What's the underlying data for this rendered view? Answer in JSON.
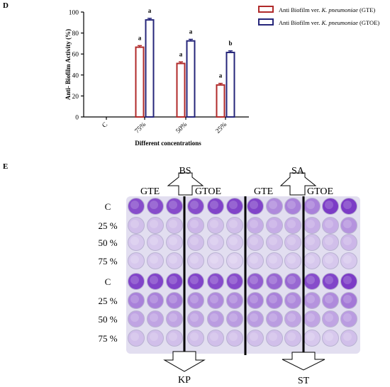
{
  "panel_d": {
    "letter": "D"
  },
  "panel_e": {
    "letter": "E"
  },
  "chart_data": {
    "type": "bar",
    "categories": [
      "C",
      "75%",
      "50%",
      "25%"
    ],
    "series": [
      {
        "name_prefix": "Anti Biofilm ver. ",
        "name_italic": "K. pneumoniae",
        "name_suffix": " (GTE)",
        "color": "#b02a2a",
        "values": [
          0,
          66.5,
          51,
          30.5
        ],
        "errors": [
          0,
          1.5,
          1.5,
          1.5
        ],
        "sig": [
          "",
          "a",
          "a",
          "a"
        ]
      },
      {
        "name_prefix": "Anti Biofilm ver. ",
        "name_italic": "K. pneumoniae",
        "name_suffix": " (GTOE)",
        "color": "#26267a",
        "values": [
          0,
          92.5,
          72.5,
          61.5
        ],
        "errors": [
          0,
          1.5,
          1.5,
          1.5
        ],
        "sig": [
          "",
          "a",
          "a",
          "b"
        ]
      }
    ],
    "xlabel": "Different concentrations",
    "ylabel": "Anti- Biofilm Activity (%)",
    "ylim": [
      0,
      100
    ],
    "yticks": [
      0,
      20,
      40,
      60,
      80,
      100
    ],
    "legend_position": "top-right",
    "grid": false
  },
  "plate": {
    "top_labels": {
      "left_gte": "GTE",
      "left_gtoe": "GTOE",
      "right_gte": "GTE",
      "right_gtoe": "GTOE"
    },
    "arrows": {
      "top_left": "BS",
      "top_right": "SA",
      "bottom_left": "KP",
      "bottom_right": "ST"
    },
    "row_labels": [
      "C",
      "25 %",
      "50 %",
      "75 %",
      "C",
      "25 %",
      "50 %",
      "75 %"
    ],
    "well_intensity": [
      [
        0.85,
        0.85,
        0.85,
        0.85,
        0.9,
        0.9,
        0.9,
        0.5,
        0.55,
        0.55,
        0.95,
        0.95
      ],
      [
        0.2,
        0.2,
        0.2,
        0.25,
        0.2,
        0.2,
        0.3,
        0.3,
        0.3,
        0.3,
        0.3,
        0.45
      ],
      [
        0.15,
        0.15,
        0.15,
        0.2,
        0.15,
        0.15,
        0.2,
        0.2,
        0.2,
        0.2,
        0.2,
        0.25
      ],
      [
        0.15,
        0.15,
        0.15,
        0.15,
        0.1,
        0.1,
        0.15,
        0.15,
        0.15,
        0.15,
        0.15,
        0.15
      ],
      [
        0.9,
        0.9,
        0.9,
        0.9,
        0.85,
        0.85,
        0.75,
        0.7,
        0.7,
        0.85,
        0.9,
        0.95
      ],
      [
        0.55,
        0.55,
        0.55,
        0.5,
        0.5,
        0.5,
        0.55,
        0.55,
        0.5,
        0.45,
        0.5,
        0.6
      ],
      [
        0.35,
        0.35,
        0.35,
        0.35,
        0.4,
        0.4,
        0.4,
        0.4,
        0.35,
        0.35,
        0.35,
        0.4
      ],
      [
        0.2,
        0.2,
        0.2,
        0.2,
        0.2,
        0.2,
        0.2,
        0.2,
        0.2,
        0.15,
        0.15,
        0.2
      ]
    ],
    "colors": {
      "light_well": "#e6e0f2",
      "dark_well": "#7d3bcb",
      "plate_bg": "#dcd8ec"
    }
  }
}
